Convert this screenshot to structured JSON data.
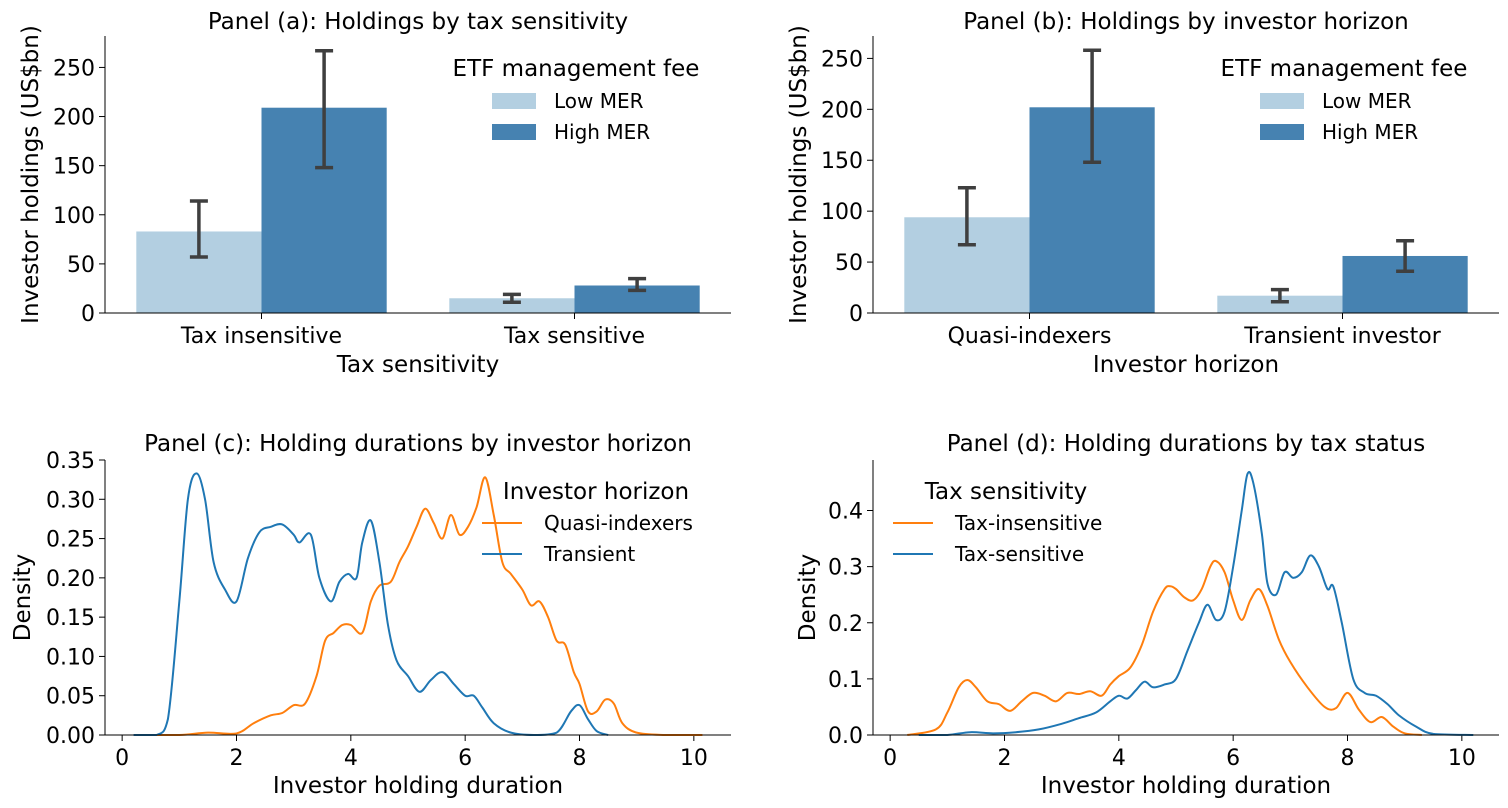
{
  "colors": {
    "low_mer": "#b3cfe1",
    "high_mer": "#4682b1",
    "error_bar": "#3f3f3f",
    "quasi": "#ff7f0e",
    "transient": "#1f77b4",
    "tax_insensitive": "#ff7f0e",
    "tax_sensitive": "#1f77b4"
  },
  "chart_data": [
    {
      "panel": "a",
      "type": "bar",
      "title": "Panel (a): Holdings by tax sensitivity",
      "xlabel": "Tax sensitivity",
      "ylabel": "Investor holdings (US$bn)",
      "categories": [
        "Tax insensitive",
        "Tax sensitive"
      ],
      "ylim": [
        0,
        282
      ],
      "yticks": [
        0,
        50,
        100,
        150,
        200,
        250
      ],
      "legend": {
        "title": "ETF management fee",
        "position": "top-right"
      },
      "series": [
        {
          "name": "Low MER",
          "color": "#b3cfe1",
          "values": [
            83,
            15
          ],
          "err_low": [
            57,
            11
          ],
          "err_high": [
            114,
            19
          ]
        },
        {
          "name": "High MER",
          "color": "#4682b1",
          "values": [
            209,
            28
          ],
          "err_low": [
            148,
            23
          ],
          "err_high": [
            267,
            35
          ]
        }
      ]
    },
    {
      "panel": "b",
      "type": "bar",
      "title": "Panel (b): Holdings by investor horizon",
      "xlabel": "Investor horizon",
      "ylabel": "Investor holdings (US$bn)",
      "categories": [
        "Quasi-indexers",
        "Transient investor"
      ],
      "ylim": [
        0,
        272
      ],
      "yticks": [
        0,
        50,
        100,
        150,
        200,
        250
      ],
      "legend": {
        "title": "ETF management fee",
        "position": "top-right"
      },
      "series": [
        {
          "name": "Low MER",
          "color": "#b3cfe1",
          "values": [
            94,
            17
          ],
          "err_low": [
            67,
            11
          ],
          "err_high": [
            123,
            23
          ]
        },
        {
          "name": "High MER",
          "color": "#4682b1",
          "values": [
            202,
            56
          ],
          "err_low": [
            148,
            41
          ],
          "err_high": [
            258,
            71
          ]
        }
      ]
    },
    {
      "panel": "c",
      "type": "line",
      "title": "Panel (c): Holding durations by investor horizon",
      "xlabel": "Investor holding duration",
      "ylabel": "Density",
      "xlim": [
        -0.3,
        10.65
      ],
      "ylim": [
        0,
        0.35
      ],
      "xticks": [
        0,
        2,
        4,
        6,
        8,
        10
      ],
      "yticks": [
        "0.00",
        "0.05",
        "0.10",
        "0.15",
        "0.20",
        "0.25",
        "0.30",
        "0.35"
      ],
      "legend": {
        "title": "Investor horizon",
        "position": "top-right"
      },
      "series": [
        {
          "name": "Quasi-indexers",
          "color": "#ff7f0e",
          "x": [
            0.3,
            1.0,
            1.5,
            2.0,
            2.3,
            2.6,
            2.8,
            3.0,
            3.2,
            3.4,
            3.55,
            3.7,
            3.85,
            4.0,
            4.2,
            4.35,
            4.5,
            4.7,
            4.85,
            5.0,
            5.15,
            5.3,
            5.45,
            5.6,
            5.75,
            5.9,
            6.05,
            6.2,
            6.35,
            6.5,
            6.65,
            6.8,
            7.0,
            7.15,
            7.3,
            7.45,
            7.6,
            7.75,
            7.9,
            8.0,
            8.15,
            8.3,
            8.45,
            8.6,
            8.75,
            9.0,
            9.5,
            10.15
          ],
          "y": [
            0.0,
            0.0,
            0.003,
            0.002,
            0.015,
            0.025,
            0.028,
            0.038,
            0.04,
            0.075,
            0.12,
            0.13,
            0.14,
            0.14,
            0.13,
            0.17,
            0.19,
            0.195,
            0.22,
            0.24,
            0.265,
            0.288,
            0.27,
            0.25,
            0.28,
            0.255,
            0.265,
            0.29,
            0.328,
            0.28,
            0.22,
            0.205,
            0.185,
            0.165,
            0.17,
            0.15,
            0.12,
            0.115,
            0.08,
            0.065,
            0.03,
            0.03,
            0.045,
            0.04,
            0.015,
            0.003,
            0.0,
            0.0
          ]
        },
        {
          "name": "Transient",
          "color": "#1f77b4",
          "x": [
            0.2,
            0.6,
            0.8,
            1.0,
            1.15,
            1.3,
            1.45,
            1.6,
            1.8,
            2.0,
            2.2,
            2.4,
            2.6,
            2.8,
            3.0,
            3.1,
            3.3,
            3.45,
            3.65,
            3.8,
            3.95,
            4.1,
            4.2,
            4.35,
            4.5,
            4.65,
            4.8,
            5.0,
            5.2,
            5.4,
            5.6,
            5.8,
            6.0,
            6.15,
            6.3,
            6.5,
            6.8,
            7.2,
            7.6,
            7.85,
            8.0,
            8.15,
            8.3,
            8.5
          ],
          "y": [
            0.0,
            0.0,
            0.02,
            0.17,
            0.3,
            0.333,
            0.3,
            0.22,
            0.185,
            0.17,
            0.225,
            0.258,
            0.265,
            0.268,
            0.255,
            0.245,
            0.255,
            0.2,
            0.17,
            0.195,
            0.205,
            0.2,
            0.245,
            0.273,
            0.22,
            0.14,
            0.095,
            0.075,
            0.055,
            0.07,
            0.08,
            0.065,
            0.05,
            0.05,
            0.035,
            0.015,
            0.003,
            0.0,
            0.003,
            0.03,
            0.038,
            0.02,
            0.005,
            0.0
          ]
        }
      ]
    },
    {
      "panel": "d",
      "type": "line",
      "title": "Panel (d): Holding durations by tax status",
      "xlabel": "Investor holding duration",
      "ylabel": "Density",
      "xlim": [
        -0.3,
        10.65
      ],
      "ylim": [
        0,
        0.49
      ],
      "xticks": [
        0,
        2,
        4,
        6,
        8,
        10
      ],
      "yticks": [
        "0.0",
        "0.1",
        "0.2",
        "0.3",
        "0.4"
      ],
      "legend": {
        "title": "Tax sensitivity",
        "position": "top-left"
      },
      "series": [
        {
          "name": "Tax-insensitive",
          "color": "#ff7f0e",
          "x": [
            0.3,
            0.8,
            1.0,
            1.2,
            1.35,
            1.5,
            1.7,
            1.9,
            2.1,
            2.3,
            2.5,
            2.7,
            2.9,
            3.1,
            3.3,
            3.5,
            3.7,
            3.85,
            4.0,
            4.2,
            4.4,
            4.6,
            4.8,
            4.9,
            5.0,
            5.15,
            5.3,
            5.45,
            5.6,
            5.7,
            5.85,
            6.0,
            6.15,
            6.3,
            6.45,
            6.6,
            6.8,
            7.0,
            7.3,
            7.6,
            7.8,
            8.0,
            8.2,
            8.4,
            8.6,
            8.8,
            9.0,
            9.3
          ],
          "y": [
            0.0,
            0.01,
            0.04,
            0.085,
            0.098,
            0.085,
            0.06,
            0.055,
            0.043,
            0.06,
            0.075,
            0.07,
            0.06,
            0.075,
            0.073,
            0.078,
            0.07,
            0.09,
            0.105,
            0.12,
            0.16,
            0.22,
            0.26,
            0.265,
            0.26,
            0.245,
            0.24,
            0.26,
            0.3,
            0.31,
            0.29,
            0.24,
            0.205,
            0.24,
            0.26,
            0.23,
            0.17,
            0.13,
            0.085,
            0.05,
            0.048,
            0.075,
            0.045,
            0.023,
            0.032,
            0.015,
            0.003,
            0.0
          ]
        },
        {
          "name": "Tax-sensitive",
          "color": "#1f77b4",
          "x": [
            0.5,
            1.0,
            1.4,
            1.8,
            2.2,
            2.6,
            3.0,
            3.3,
            3.6,
            3.85,
            4.0,
            4.15,
            4.3,
            4.45,
            4.6,
            4.8,
            5.0,
            5.2,
            5.4,
            5.55,
            5.7,
            5.85,
            6.0,
            6.15,
            6.25,
            6.35,
            6.5,
            6.6,
            6.75,
            6.9,
            7.05,
            7.2,
            7.35,
            7.5,
            7.65,
            7.75,
            7.9,
            8.1,
            8.3,
            8.5,
            8.7,
            8.9,
            9.2,
            9.5,
            10.2
          ],
          "y": [
            0.0,
            0.0,
            0.005,
            0.003,
            0.005,
            0.01,
            0.02,
            0.03,
            0.04,
            0.06,
            0.07,
            0.065,
            0.08,
            0.095,
            0.085,
            0.09,
            0.1,
            0.15,
            0.2,
            0.232,
            0.205,
            0.22,
            0.3,
            0.4,
            0.465,
            0.45,
            0.36,
            0.27,
            0.25,
            0.29,
            0.28,
            0.29,
            0.32,
            0.3,
            0.26,
            0.265,
            0.2,
            0.1,
            0.075,
            0.07,
            0.055,
            0.035,
            0.015,
            0.002,
            0.0
          ]
        }
      ]
    }
  ]
}
